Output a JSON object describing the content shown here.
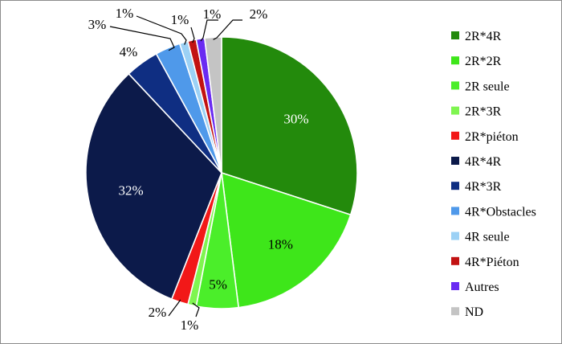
{
  "chart_data": {
    "type": "pie",
    "title": "",
    "legend_position": "right",
    "start_angle_deg": 0,
    "direction": "clockwise",
    "slices": [
      {
        "label": "2R*4R",
        "value": 30,
        "display": "30%",
        "color": "#238a0c",
        "label_color": "#ffffff"
      },
      {
        "label": "2R*2R",
        "value": 18,
        "display": "18%",
        "color": "#3ee61a",
        "label_color": "#000000"
      },
      {
        "label": "2R seule",
        "value": 5,
        "display": "5%",
        "color": "#4bee2a",
        "label_color": "#000000"
      },
      {
        "label": "2R*3R",
        "value": 1,
        "display": "1%",
        "color": "#7ff550",
        "label_color": "#000000"
      },
      {
        "label": "2R*piéton",
        "value": 2,
        "display": "2%",
        "color": "#f21818",
        "label_color": "#000000"
      },
      {
        "label": "4R*4R",
        "value": 32,
        "display": "32%",
        "color": "#0c1a4a",
        "label_color": "#ffffff"
      },
      {
        "label": "4R*3R",
        "value": 4,
        "display": "4%",
        "color": "#0f2e82",
        "label_color": "#000000"
      },
      {
        "label": "4R*Obstacles",
        "value": 3,
        "display": "3%",
        "color": "#4f99ea",
        "label_color": "#000000"
      },
      {
        "label": "4R seule",
        "value": 1,
        "display": "1%",
        "color": "#9cd1f5",
        "label_color": "#000000"
      },
      {
        "label": "4R*Piéton",
        "value": 1,
        "display": "1%",
        "color": "#c21212",
        "label_color": "#000000"
      },
      {
        "label": "Autres",
        "value": 1,
        "display": "1%",
        "color": "#6a2bf2",
        "label_color": "#000000"
      },
      {
        "label": "ND",
        "value": 2,
        "display": "2%",
        "color": "#c4c4c4",
        "label_color": "#000000"
      }
    ]
  }
}
